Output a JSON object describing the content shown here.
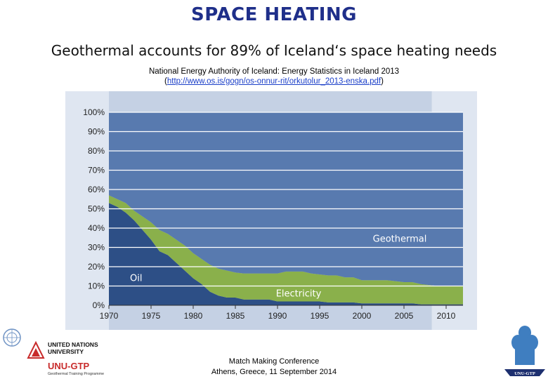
{
  "header": {
    "title": "SPACE HEATING",
    "subtitle": "Geothermal accounts for 89% of Iceland‘s space heating needs",
    "source_line": "National Energy Authority of Iceland:  Energy Statistics in Iceland 2013",
    "source_open": "(",
    "source_url": "http://www.os.is/gogn/os-onnur-rit/orkutolur_2013-enska.pdf",
    "source_close": ")"
  },
  "footer": {
    "line1": "Match Making Conference",
    "line2": "Athens, Greece, 11 September 2014"
  },
  "logos": {
    "unu_name_1": "UNITED NATIONS",
    "unu_name_2": "UNIVERSITY",
    "unu_gtp": "UNU-GTP",
    "unu_programme": "Geothermal Training Programme",
    "geyser_label": "UNU-GTP"
  },
  "colors": {
    "panel_bg": "#dfe6f1",
    "plot_bg": "#c5d1e4",
    "geothermal": "#587aaf",
    "electricity": "#8ab04b",
    "oil": "#2d4f86",
    "gridline": "#ffffff",
    "title": "#1f2f8a"
  },
  "chart_data": {
    "type": "area",
    "stacked": true,
    "xlim": [
      1970,
      2012
    ],
    "ylim": [
      0,
      100
    ],
    "x_ticks": [
      1970,
      1975,
      1980,
      1985,
      1990,
      1995,
      2000,
      2005,
      2010
    ],
    "y_ticks": [
      "0%",
      "10%",
      "20%",
      "30%",
      "40%",
      "50%",
      "60%",
      "70%",
      "80%",
      "90%",
      "100%"
    ],
    "grid": true,
    "x": [
      1970,
      1971,
      1972,
      1973,
      1974,
      1975,
      1976,
      1977,
      1978,
      1979,
      1980,
      1981,
      1982,
      1983,
      1984,
      1985,
      1986,
      1987,
      1988,
      1989,
      1990,
      1991,
      1992,
      1993,
      1994,
      1995,
      1996,
      1997,
      1998,
      1999,
      2000,
      2001,
      2002,
      2003,
      2004,
      2005,
      2006,
      2007,
      2008,
      2009,
      2010,
      2011,
      2012
    ],
    "series": [
      {
        "name": "Oil",
        "values": [
          53,
          51,
          48,
          44,
          39,
          34,
          28,
          26,
          22,
          18,
          14,
          11,
          7,
          5,
          4,
          4,
          3,
          3,
          3,
          3,
          2,
          2,
          2,
          2,
          2,
          2,
          1.5,
          1.5,
          1.5,
          1.5,
          1,
          1,
          1,
          1,
          1,
          1,
          1,
          0.5,
          0.5,
          0.5,
          0.5,
          0.5,
          0.5
        ]
      },
      {
        "name": "Electricity",
        "values": [
          4,
          4,
          5,
          5,
          7,
          9,
          11,
          11,
          12,
          13,
          13,
          13,
          14,
          14,
          14,
          13,
          13.5,
          13.5,
          13.5,
          13.5,
          14.5,
          15.5,
          15.5,
          15.5,
          14.5,
          14,
          14,
          14,
          13,
          13,
          12,
          12,
          12,
          12,
          11.5,
          11,
          11,
          10.5,
          10,
          9.5,
          9.5,
          9.5,
          9.5
        ]
      },
      {
        "name": "Geothermal",
        "values": [
          43,
          45,
          47,
          51,
          54,
          57,
          61,
          63,
          66,
          69,
          73,
          76,
          79,
          81,
          82,
          83,
          83.5,
          83.5,
          83.5,
          83.5,
          83.5,
          82.5,
          82.5,
          82.5,
          83.5,
          84,
          84.5,
          84.5,
          85.5,
          85.5,
          87,
          87,
          87,
          87,
          87.5,
          88,
          88,
          89,
          89.5,
          90,
          90,
          90,
          90
        ]
      }
    ],
    "annotations": [
      "Oil",
      "Electricity",
      "Geothermal"
    ]
  }
}
